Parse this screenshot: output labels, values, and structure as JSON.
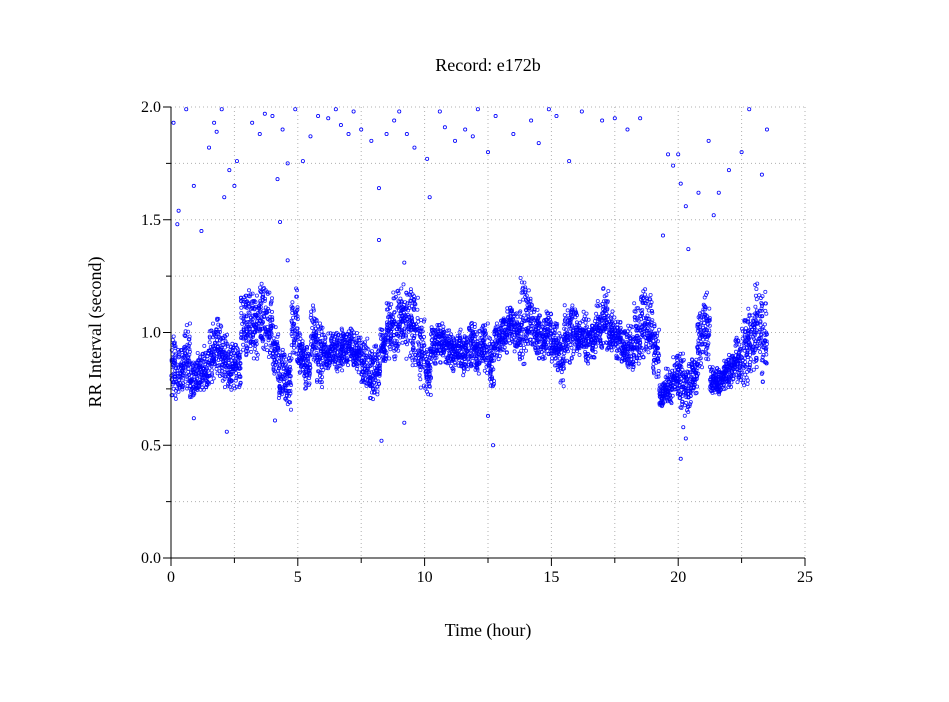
{
  "chart_data": {
    "type": "scatter",
    "title": "Record:  e172b",
    "xlabel": "Time (hour)",
    "ylabel": "RR Interval (second)",
    "xlim": [
      0,
      25
    ],
    "ylim": [
      0.0,
      2.0
    ],
    "xticks": [
      0,
      5,
      10,
      15,
      20,
      25
    ],
    "xtick_labels": [
      "0",
      "5",
      "10",
      "15",
      "20",
      "25"
    ],
    "yticks": [
      0.0,
      0.5,
      1.0,
      1.5,
      2.0
    ],
    "ytick_labels": [
      "0.0",
      "0.5",
      "1.0",
      "1.5",
      "2.0"
    ],
    "grid": true,
    "marker_color": "#0000ff",
    "bin_width_hours": 0.25,
    "bins_rr_range": [
      [
        0.68,
        1.0
      ],
      [
        0.7,
        0.95
      ],
      [
        0.75,
        1.05
      ],
      [
        0.7,
        0.88
      ],
      [
        0.72,
        0.92
      ],
      [
        0.74,
        0.95
      ],
      [
        0.78,
        1.05
      ],
      [
        0.8,
        1.07
      ],
      [
        0.75,
        1.0
      ],
      [
        0.74,
        0.95
      ],
      [
        0.75,
        0.95
      ],
      [
        0.85,
        1.2
      ],
      [
        0.9,
        1.2
      ],
      [
        0.88,
        1.18
      ],
      [
        0.9,
        1.22
      ],
      [
        0.85,
        1.2
      ],
      [
        0.78,
        1.05
      ],
      [
        0.7,
        0.95
      ],
      [
        0.65,
        0.9
      ],
      [
        0.85,
        1.25
      ],
      [
        0.8,
        1.0
      ],
      [
        0.75,
        0.95
      ],
      [
        0.85,
        1.12
      ],
      [
        0.75,
        1.05
      ],
      [
        0.82,
        1.0
      ],
      [
        0.85,
        1.0
      ],
      [
        0.82,
        1.02
      ],
      [
        0.85,
        1.0
      ],
      [
        0.85,
        1.02
      ],
      [
        0.82,
        1.0
      ],
      [
        0.75,
        0.98
      ],
      [
        0.7,
        0.95
      ],
      [
        0.72,
        0.95
      ],
      [
        0.85,
        1.02
      ],
      [
        0.88,
        1.15
      ],
      [
        0.88,
        1.2
      ],
      [
        0.9,
        1.22
      ],
      [
        0.88,
        1.2
      ],
      [
        0.85,
        1.2
      ],
      [
        0.75,
        1.1
      ],
      [
        0.72,
        0.95
      ],
      [
        0.85,
        1.05
      ],
      [
        0.85,
        1.05
      ],
      [
        0.85,
        1.02
      ],
      [
        0.82,
        1.0
      ],
      [
        0.85,
        1.02
      ],
      [
        0.8,
        1.0
      ],
      [
        0.85,
        1.05
      ],
      [
        0.8,
        1.02
      ],
      [
        0.82,
        1.05
      ],
      [
        0.75,
        1.0
      ],
      [
        0.88,
        1.05
      ],
      [
        0.9,
        1.08
      ],
      [
        0.95,
        1.12
      ],
      [
        0.9,
        1.1
      ],
      [
        0.85,
        1.25
      ],
      [
        0.9,
        1.2
      ],
      [
        0.9,
        1.12
      ],
      [
        0.88,
        1.08
      ],
      [
        0.9,
        1.1
      ],
      [
        0.85,
        1.05
      ],
      [
        0.75,
        1.02
      ],
      [
        0.85,
        1.15
      ],
      [
        0.88,
        1.12
      ],
      [
        0.9,
        1.08
      ],
      [
        0.85,
        1.1
      ],
      [
        0.88,
        1.08
      ],
      [
        0.9,
        1.15
      ],
      [
        0.92,
        1.2
      ],
      [
        0.9,
        1.12
      ],
      [
        0.88,
        1.05
      ],
      [
        0.85,
        1.02
      ],
      [
        0.82,
        1.05
      ],
      [
        0.85,
        1.15
      ],
      [
        0.88,
        1.2
      ],
      [
        0.9,
        1.18
      ],
      [
        0.8,
        1.05
      ],
      [
        0.67,
        0.8
      ],
      [
        0.68,
        0.85
      ],
      [
        0.7,
        0.9
      ],
      [
        0.65,
        0.92
      ],
      [
        0.62,
        0.88
      ],
      [
        0.7,
        0.9
      ],
      [
        0.8,
        1.12
      ],
      [
        0.85,
        1.2
      ],
      [
        0.73,
        0.85
      ],
      [
        0.72,
        0.85
      ],
      [
        0.74,
        0.88
      ],
      [
        0.75,
        0.92
      ],
      [
        0.78,
        0.98
      ],
      [
        0.75,
        1.1
      ],
      [
        0.8,
        1.15
      ],
      [
        0.8,
        1.22
      ],
      [
        0.78,
        1.25
      ]
    ],
    "outliers": [
      [
        0.1,
        1.93
      ],
      [
        0.25,
        1.48
      ],
      [
        0.3,
        1.54
      ],
      [
        0.6,
        1.99
      ],
      [
        0.9,
        1.65
      ],
      [
        1.2,
        1.45
      ],
      [
        1.5,
        1.82
      ],
      [
        1.7,
        1.93
      ],
      [
        1.8,
        1.89
      ],
      [
        2.0,
        1.99
      ],
      [
        2.1,
        1.6
      ],
      [
        2.3,
        1.72
      ],
      [
        2.5,
        1.65
      ],
      [
        2.6,
        1.76
      ],
      [
        3.2,
        1.93
      ],
      [
        3.5,
        1.88
      ],
      [
        3.7,
        1.97
      ],
      [
        4.0,
        1.96
      ],
      [
        4.2,
        1.68
      ],
      [
        4.4,
        1.9
      ],
      [
        4.6,
        1.75
      ],
      [
        4.9,
        1.99
      ],
      [
        5.2,
        1.76
      ],
      [
        5.5,
        1.87
      ],
      [
        5.8,
        1.96
      ],
      [
        6.2,
        1.95
      ],
      [
        6.5,
        1.99
      ],
      [
        6.7,
        1.92
      ],
      [
        7.0,
        1.88
      ],
      [
        7.2,
        1.98
      ],
      [
        7.5,
        1.9
      ],
      [
        7.9,
        1.85
      ],
      [
        8.2,
        1.64
      ],
      [
        8.5,
        1.88
      ],
      [
        8.8,
        1.94
      ],
      [
        9.0,
        1.98
      ],
      [
        9.3,
        1.88
      ],
      [
        9.6,
        1.82
      ],
      [
        10.1,
        1.77
      ],
      [
        10.2,
        1.6
      ],
      [
        10.6,
        1.98
      ],
      [
        10.8,
        1.91
      ],
      [
        11.2,
        1.85
      ],
      [
        11.6,
        1.9
      ],
      [
        11.9,
        1.87
      ],
      [
        12.1,
        1.99
      ],
      [
        12.5,
        1.8
      ],
      [
        12.8,
        1.96
      ],
      [
        13.5,
        1.88
      ],
      [
        14.2,
        1.94
      ],
      [
        14.5,
        1.84
      ],
      [
        14.9,
        1.99
      ],
      [
        15.2,
        1.96
      ],
      [
        15.7,
        1.76
      ],
      [
        16.2,
        1.98
      ],
      [
        17.0,
        1.94
      ],
      [
        17.5,
        1.95
      ],
      [
        18.0,
        1.9
      ],
      [
        18.5,
        1.95
      ],
      [
        19.6,
        1.79
      ],
      [
        19.8,
        1.74
      ],
      [
        20.0,
        1.79
      ],
      [
        20.1,
        1.66
      ],
      [
        20.3,
        1.56
      ],
      [
        20.4,
        1.37
      ],
      [
        20.8,
        1.62
      ],
      [
        21.2,
        1.85
      ],
      [
        21.4,
        1.52
      ],
      [
        21.6,
        1.62
      ],
      [
        22.0,
        1.72
      ],
      [
        22.5,
        1.8
      ],
      [
        22.8,
        1.99
      ],
      [
        23.3,
        1.7
      ],
      [
        23.5,
        1.9
      ],
      [
        19.4,
        1.43
      ],
      [
        4.3,
        1.49
      ],
      [
        8.2,
        1.41
      ],
      [
        9.2,
        1.31
      ],
      [
        4.6,
        1.32
      ],
      [
        0.9,
        0.62
      ],
      [
        2.2,
        0.56
      ],
      [
        4.1,
        0.61
      ],
      [
        8.3,
        0.52
      ],
      [
        9.2,
        0.6
      ],
      [
        12.7,
        0.5
      ],
      [
        12.5,
        0.63
      ],
      [
        20.1,
        0.44
      ],
      [
        20.3,
        0.53
      ],
      [
        20.2,
        0.58
      ]
    ]
  }
}
